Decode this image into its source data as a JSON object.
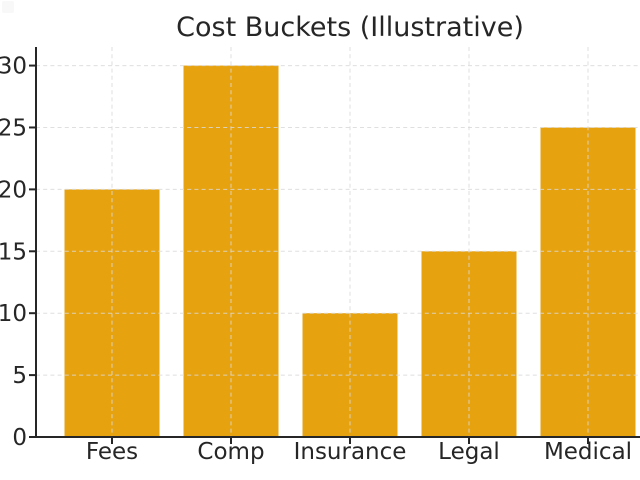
{
  "chart_data": {
    "type": "bar",
    "title": "Cost Buckets (Illustrative)",
    "categories": [
      "Fees",
      "Comp",
      "Insurance",
      "Legal",
      "Medical"
    ],
    "values": [
      20,
      30,
      10,
      15,
      25
    ],
    "xlabel": "",
    "ylabel": "",
    "yticks": [
      0,
      5,
      10,
      15,
      20,
      25,
      30
    ],
    "ylim": [
      0,
      31.5
    ],
    "grid": "both, dashed, drawn over bars",
    "legend": "none",
    "colors": {
      "bar": "#E7A210",
      "axis": "#262626",
      "grid": "#d9d9d9",
      "text": "#262626",
      "background": "#ffffff"
    }
  }
}
